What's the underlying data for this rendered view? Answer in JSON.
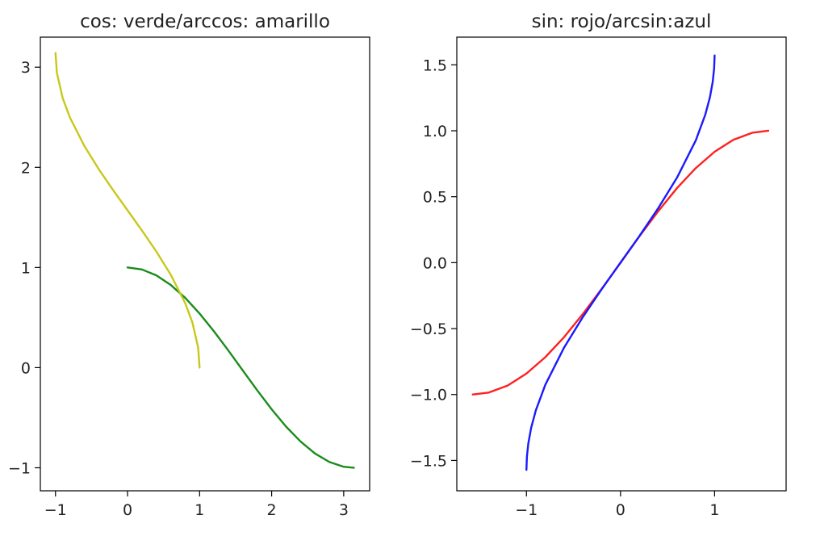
{
  "chart_data": [
    {
      "type": "line",
      "title": "cos: verde/arccos: amarillo",
      "xlabel": "",
      "ylabel": "",
      "xlim": [
        -1.21,
        3.36
      ],
      "ylim": [
        -1.23,
        3.3
      ],
      "xticks": [
        -1,
        0,
        1,
        2,
        3
      ],
      "xtick_labels": [
        "−1",
        "0",
        "1",
        "2",
        "3"
      ],
      "yticks": [
        -1,
        0,
        1,
        2,
        3
      ],
      "ytick_labels": [
        "−1",
        "0",
        "1",
        "2",
        "3"
      ],
      "grid": false,
      "legend": null,
      "series": [
        {
          "color": "#1a8c1a",
          "x": [
            0.0,
            0.2,
            0.4,
            0.6,
            0.8,
            1.0,
            1.2,
            1.4,
            1.571,
            1.8,
            2.0,
            2.2,
            2.4,
            2.6,
            2.8,
            3.0,
            3.1416
          ],
          "y": [
            1.0,
            0.98,
            0.921,
            0.825,
            0.697,
            0.54,
            0.362,
            0.17,
            0.0,
            -0.227,
            -0.416,
            -0.589,
            -0.737,
            -0.857,
            -0.942,
            -0.99,
            -1.0
          ]
        },
        {
          "color": "#c8c81c",
          "x": [
            -1.0,
            -0.98,
            -0.9,
            -0.8,
            -0.6,
            -0.4,
            -0.2,
            0.0,
            0.2,
            0.4,
            0.6,
            0.8,
            0.9,
            0.98,
            1.0
          ],
          "y": [
            3.1416,
            2.942,
            2.691,
            2.498,
            2.214,
            1.982,
            1.772,
            1.571,
            1.369,
            1.159,
            0.927,
            0.644,
            0.451,
            0.2,
            0.0
          ]
        }
      ]
    },
    {
      "type": "line",
      "title": "sin: rojo/arcsin:azul",
      "xlabel": "",
      "ylabel": "",
      "xlim": [
        -1.74,
        1.76
      ],
      "ylim": [
        -1.73,
        1.71
      ],
      "xticks": [
        -1,
        0,
        1
      ],
      "xtick_labels": [
        "−1",
        "0",
        "1"
      ],
      "yticks": [
        -1.5,
        -1.0,
        -0.5,
        0.0,
        0.5,
        1.0,
        1.5
      ],
      "ytick_labels": [
        "−1.5",
        "−1.0",
        "−0.5",
        "0.0",
        "0.5",
        "1.0",
        "1.5"
      ],
      "grid": false,
      "legend": null,
      "series": [
        {
          "color": "#ff2020",
          "x": [
            -1.5708,
            -1.4,
            -1.2,
            -1.0,
            -0.8,
            -0.6,
            -0.4,
            -0.2,
            0.0,
            0.2,
            0.4,
            0.6,
            0.8,
            1.0,
            1.2,
            1.4,
            1.5708
          ],
          "y": [
            -1.0,
            -0.985,
            -0.932,
            -0.841,
            -0.717,
            -0.565,
            -0.389,
            -0.199,
            0.0,
            0.199,
            0.389,
            0.565,
            0.717,
            0.841,
            0.932,
            0.985,
            1.0
          ]
        },
        {
          "color": "#1a1aff",
          "x": [
            -1.0,
            -0.995,
            -0.98,
            -0.95,
            -0.9,
            -0.8,
            -0.6,
            -0.4,
            -0.2,
            0.0,
            0.2,
            0.4,
            0.6,
            0.8,
            0.9,
            0.95,
            0.98,
            0.995,
            1.0
          ],
          "y": [
            -1.5708,
            -1.471,
            -1.371,
            -1.253,
            -1.12,
            -0.927,
            -0.644,
            -0.412,
            -0.201,
            0.0,
            0.201,
            0.412,
            0.644,
            0.927,
            1.12,
            1.253,
            1.371,
            1.471,
            1.5708
          ]
        }
      ]
    }
  ]
}
